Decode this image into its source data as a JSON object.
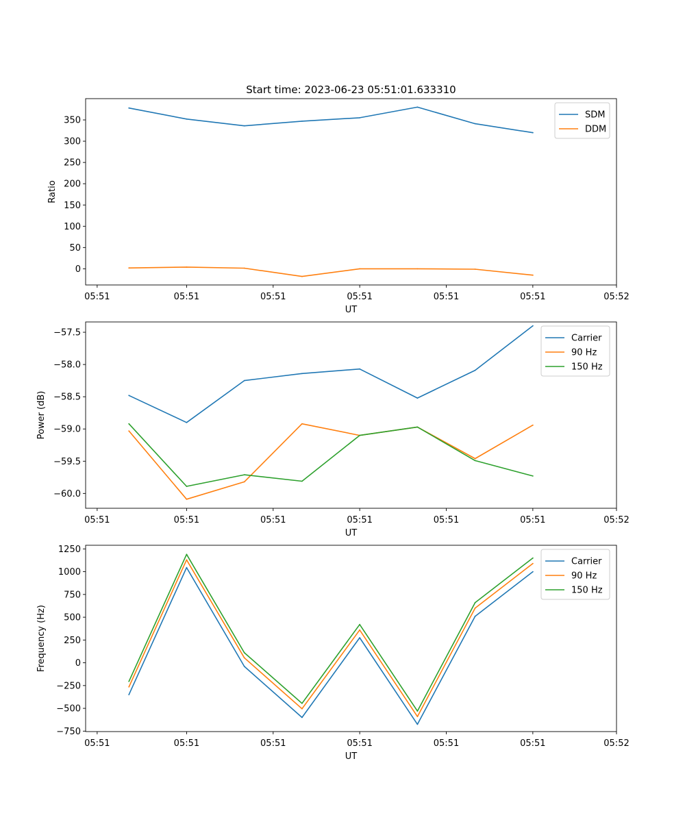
{
  "figure_title": "Start time: 2023-06-23 05:51:01.633310",
  "colors": {
    "blue": "#1f77b4",
    "orange": "#ff7f0e",
    "green": "#2ca02c"
  },
  "chart_data": [
    {
      "type": "line",
      "title": "Start time: 2023-06-23 05:51:01.633310",
      "xlabel": "UT",
      "ylabel": "Ratio",
      "x": [
        1,
        2,
        3,
        4,
        5,
        6,
        7,
        8
      ],
      "x_range": [
        0.25,
        9.45
      ],
      "x_ticks": [
        0.45,
        2.0,
        3.5,
        5.0,
        6.5,
        8.0,
        9.45
      ],
      "x_tick_labels": [
        "05:51",
        "05:51",
        "05:51",
        "05:51",
        "05:51",
        "05:51",
        "05:52"
      ],
      "ylim": [
        -38,
        400
      ],
      "y_ticks": [
        0,
        50,
        100,
        150,
        200,
        250,
        300,
        350
      ],
      "y_tick_labels": [
        "0",
        "50",
        "100",
        "150",
        "200",
        "250",
        "300",
        "350"
      ],
      "legend_position": "upper-right",
      "series": [
        {
          "name": "SDM",
          "color": "#1f77b4",
          "values": [
            378,
            352,
            336,
            347,
            355,
            380,
            341,
            320
          ]
        },
        {
          "name": "DDM",
          "color": "#ff7f0e",
          "values": [
            2,
            4,
            1.5,
            -18,
            0,
            0,
            -1,
            -15
          ]
        }
      ]
    },
    {
      "type": "line",
      "title": "",
      "xlabel": "UT",
      "ylabel": "Power (dB)",
      "x": [
        1,
        2,
        3,
        4,
        5,
        6,
        7,
        8
      ],
      "x_range": [
        0.25,
        9.45
      ],
      "x_ticks": [
        0.45,
        2.0,
        3.5,
        5.0,
        6.5,
        8.0,
        9.45
      ],
      "x_tick_labels": [
        "05:51",
        "05:51",
        "05:51",
        "05:51",
        "05:51",
        "05:51",
        "05:52"
      ],
      "ylim": [
        -60.23,
        -57.34
      ],
      "y_ticks": [
        -60.0,
        -59.5,
        -59.0,
        -58.5,
        -58.0,
        -57.5
      ],
      "y_tick_labels": [
        "−60.0",
        "−59.5",
        "−59.0",
        "−58.5",
        "−58.0",
        "−57.5"
      ],
      "legend_position": "upper-right",
      "series": [
        {
          "name": "Carrier",
          "color": "#1f77b4",
          "values": [
            -58.48,
            -58.9,
            -58.25,
            -58.14,
            -58.07,
            -58.52,
            -58.09,
            -57.4
          ]
        },
        {
          "name": "90 Hz",
          "color": "#ff7f0e",
          "values": [
            -59.03,
            -60.09,
            -59.82,
            -58.92,
            -59.1,
            -58.97,
            -59.46,
            -58.94
          ]
        },
        {
          "name": "150 Hz",
          "color": "#2ca02c",
          "values": [
            -58.92,
            -59.89,
            -59.71,
            -59.81,
            -59.1,
            -58.97,
            -59.49,
            -59.73
          ]
        }
      ]
    },
    {
      "type": "line",
      "title": "",
      "xlabel": "UT",
      "ylabel": "Frequency (Hz)",
      "x": [
        1,
        2,
        3,
        4,
        5,
        6,
        7,
        8
      ],
      "x_range": [
        0.25,
        9.45
      ],
      "x_ticks": [
        0.45,
        2.0,
        3.5,
        5.0,
        6.5,
        8.0,
        9.45
      ],
      "x_tick_labels": [
        "05:51",
        "05:51",
        "05:51",
        "05:51",
        "05:51",
        "05:51",
        "05:52"
      ],
      "ylim": [
        -755,
        1290
      ],
      "y_ticks": [
        -750,
        -500,
        -250,
        0,
        250,
        500,
        750,
        1000,
        1250
      ],
      "y_tick_labels": [
        "−750",
        "−500",
        "−250",
        "0",
        "250",
        "500",
        "750",
        "1000",
        "1250"
      ],
      "legend_position": "upper-right",
      "series": [
        {
          "name": "Carrier",
          "color": "#1f77b4",
          "values": [
            -350,
            1045,
            -40,
            -600,
            275,
            -675,
            510,
            1000
          ]
        },
        {
          "name": "90 Hz",
          "color": "#ff7f0e",
          "values": [
            -265,
            1130,
            55,
            -505,
            360,
            -590,
            600,
            1090
          ]
        },
        {
          "name": "150 Hz",
          "color": "#2ca02c",
          "values": [
            -205,
            1190,
            110,
            -445,
            420,
            -530,
            660,
            1150
          ]
        }
      ]
    }
  ]
}
